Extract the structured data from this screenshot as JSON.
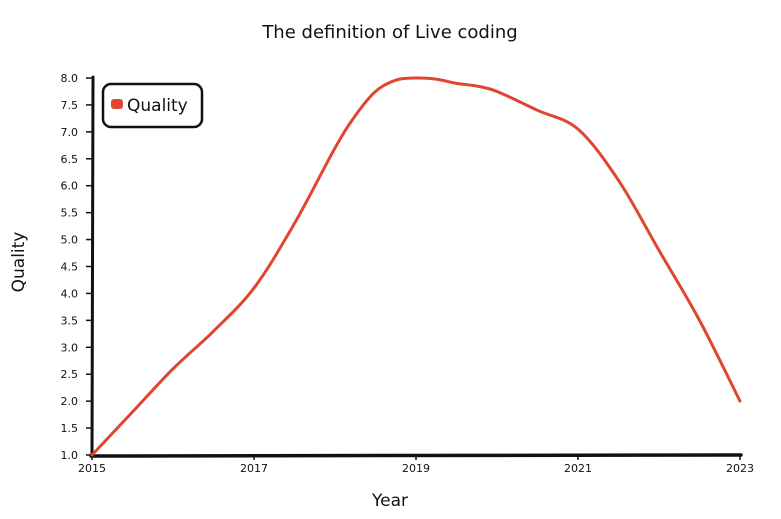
{
  "chart_data": {
    "type": "line",
    "title": "The definition of Live coding",
    "xlabel": "Year",
    "ylabel": "Quality",
    "x_ticks": [
      "2015",
      "2017",
      "2019",
      "2021",
      "2023"
    ],
    "y_ticks": [
      "1.0",
      "1.5",
      "2.0",
      "2.5",
      "3.0",
      "3.5",
      "4.0",
      "4.5",
      "5.0",
      "5.5",
      "6.0",
      "6.5",
      "7.0",
      "7.5",
      "8.0"
    ],
    "xlim": [
      2015,
      2023
    ],
    "ylim": [
      1.0,
      8.0
    ],
    "grid": false,
    "legend_position": "top-left",
    "series": [
      {
        "name": "Quality",
        "color": "#e0462f",
        "x": [
          2015,
          2015.5,
          2016,
          2016.5,
          2017,
          2017.5,
          2018,
          2018.25,
          2018.5,
          2018.75,
          2019,
          2019.25,
          2019.5,
          2019.75,
          2020,
          2020.5,
          2021,
          2021.5,
          2022,
          2022.5,
          2023
        ],
        "values": [
          1.0,
          1.8,
          2.6,
          3.3,
          4.1,
          5.3,
          6.7,
          7.3,
          7.75,
          7.96,
          8.0,
          7.98,
          7.9,
          7.85,
          7.75,
          7.4,
          7.05,
          6.1,
          4.8,
          3.5,
          2.0
        ]
      }
    ]
  }
}
